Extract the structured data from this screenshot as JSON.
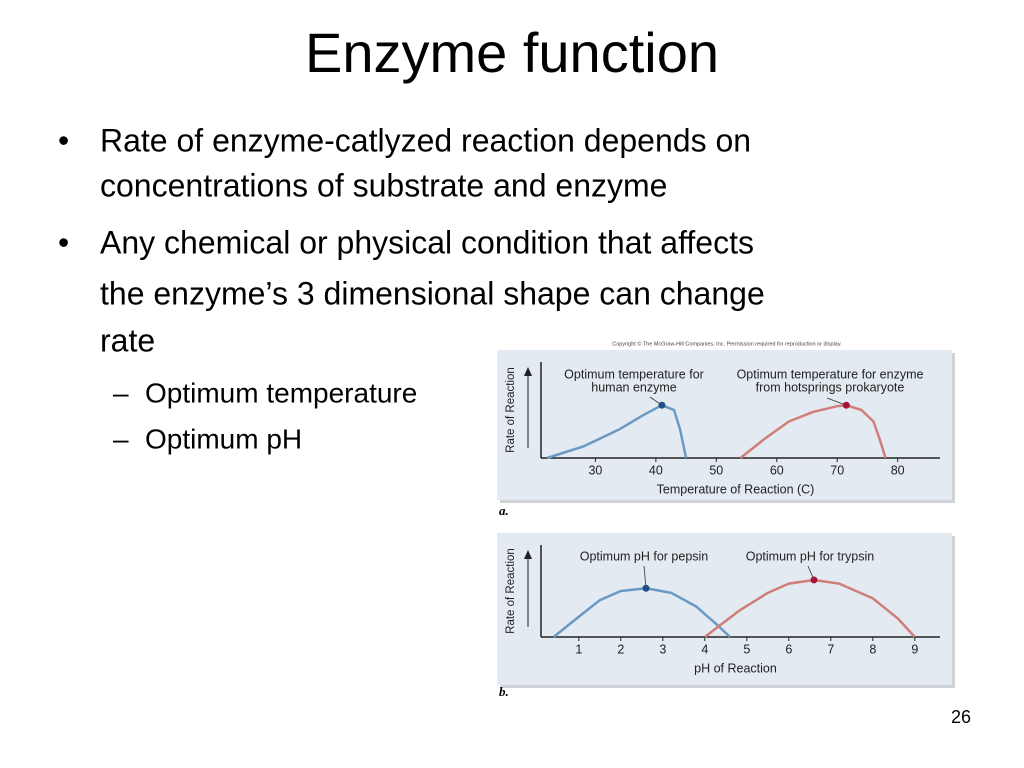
{
  "slide": {
    "title": "Enzyme function",
    "bullets": [
      [
        "Rate of enzyme-catlyzed reaction depends on",
        "concentrations of substrate and enzyme"
      ],
      [
        "Any chemical or physical condition that affects",
        "the enzyme’s 3 dimensional shape can change",
        "rate"
      ]
    ],
    "sub_bullets": [
      "Optimum temperature",
      "Optimum pH"
    ],
    "copyright": "Copyright © The McGraw-Hill Companies, Inc. Permission required for reproduction or display.",
    "page_number": "26"
  },
  "chart_data": [
    {
      "type": "line",
      "panel_label": "a.",
      "xlabel": "Temperature of Reaction (C)",
      "ylabel": "Rate of Reaction",
      "xlim": [
        21,
        87
      ],
      "ylim": [
        0,
        1
      ],
      "xticks": [
        30,
        40,
        50,
        60,
        70,
        80
      ],
      "series": [
        {
          "color": "#6a9ac4",
          "peak_color": "#1f4f86",
          "peak_index": 4,
          "x": [
            22,
            28,
            34,
            38,
            41,
            43,
            44,
            45
          ],
          "values": [
            0,
            0.12,
            0.3,
            0.45,
            0.55,
            0.5,
            0.3,
            0
          ],
          "annotation": [
            "Optimum temperature for",
            "human enzyme"
          ]
        },
        {
          "color": "#d07f78",
          "peak_color": "#a3143a",
          "peak_index": 5,
          "x": [
            54,
            58,
            62,
            66,
            70,
            71.5,
            74,
            76,
            77,
            78
          ],
          "values": [
            0,
            0.2,
            0.38,
            0.48,
            0.54,
            0.55,
            0.5,
            0.38,
            0.2,
            0
          ],
          "annotation": [
            "Optimum temperature for enzyme",
            "from hotsprings prokaryote"
          ]
        }
      ]
    },
    {
      "type": "line",
      "panel_label": "b.",
      "xlabel": "pH of Reaction",
      "ylabel": "Rate of Reaction",
      "xlim": [
        0.1,
        9.6
      ],
      "ylim": [
        0,
        1
      ],
      "xticks": [
        1,
        2,
        3,
        4,
        5,
        6,
        7,
        8,
        9
      ],
      "series": [
        {
          "color": "#6a9ac4",
          "peak_color": "#1f4f86",
          "peak_index": 4,
          "x": [
            0.4,
            1,
            1.5,
            2,
            2.6,
            3.2,
            3.8,
            4.3,
            4.6
          ],
          "values": [
            0,
            0.22,
            0.4,
            0.5,
            0.53,
            0.48,
            0.33,
            0.13,
            0
          ],
          "annotation": [
            "Optimum pH for pepsin"
          ]
        },
        {
          "color": "#d07f78",
          "peak_color": "#a3143a",
          "peak_index": 4,
          "x": [
            4,
            4.8,
            5.5,
            6,
            6.6,
            7.2,
            8,
            8.6,
            9
          ],
          "values": [
            0,
            0.28,
            0.48,
            0.58,
            0.62,
            0.58,
            0.42,
            0.2,
            0
          ],
          "annotation": [
            "Optimum pH for trypsin"
          ]
        }
      ]
    }
  ]
}
